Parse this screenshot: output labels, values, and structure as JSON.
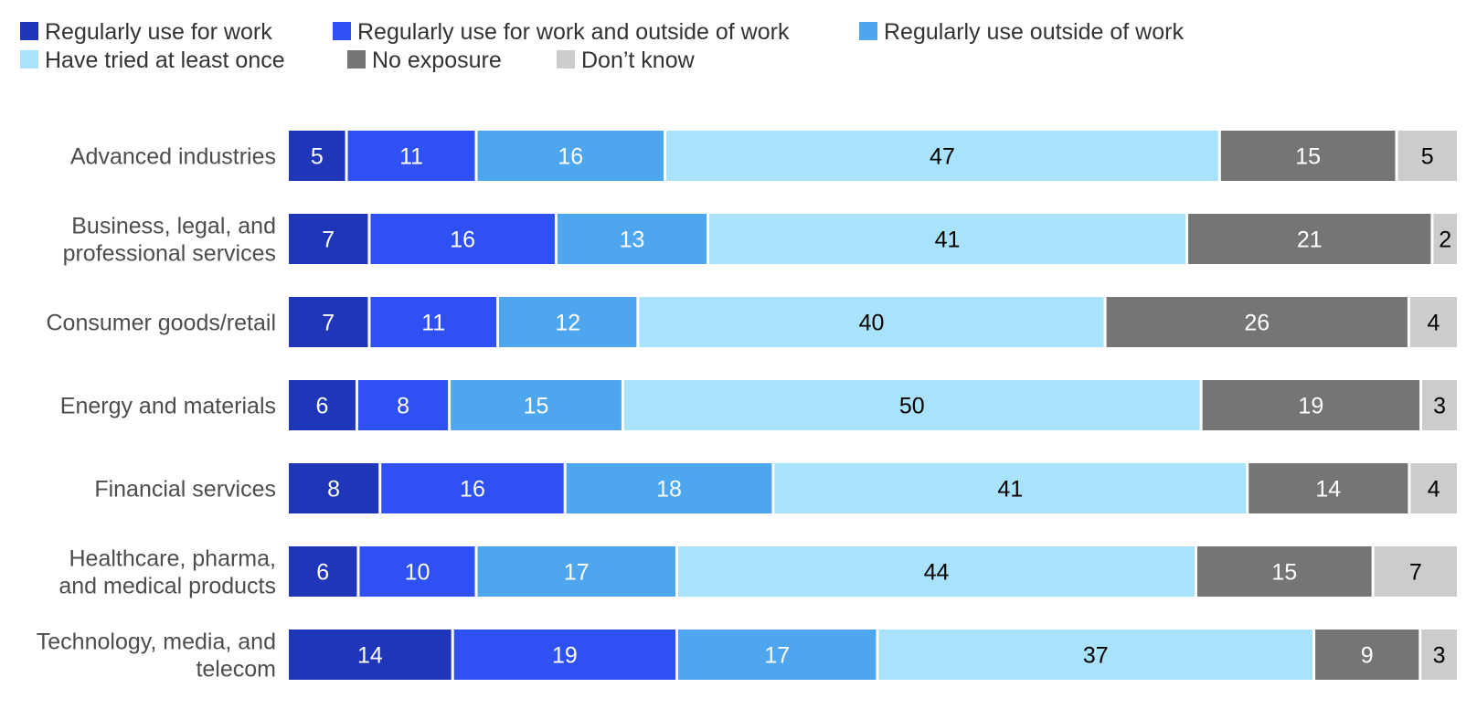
{
  "chart_data": {
    "type": "bar",
    "orientation": "horizontal",
    "stacked": true,
    "title": "",
    "xlabel": "",
    "ylabel": "",
    "grid": false,
    "legend_placement": "top-left",
    "categories": [
      [
        "Advanced industries"
      ],
      [
        "Business, legal, and",
        "professional services"
      ],
      [
        "Consumer goods/retail"
      ],
      [
        "Energy and materials"
      ],
      [
        "Financial services"
      ],
      [
        "Healthcare, pharma,",
        "and medical products"
      ],
      [
        "Technology, media, and",
        "telecom"
      ]
    ],
    "series": [
      {
        "name": "Regularly use for work",
        "color": "#1f36b8",
        "label_color": "#ffffff",
        "values": [
          5,
          7,
          7,
          6,
          8,
          6,
          14
        ]
      },
      {
        "name": "Regularly use for work and outside of work",
        "color": "#2f50f2",
        "label_color": "#ffffff",
        "values": [
          11,
          16,
          11,
          8,
          16,
          10,
          19
        ]
      },
      {
        "name": "Regularly use outside of work",
        "color": "#4ea7ee",
        "label_color": "#ffffff",
        "values": [
          16,
          13,
          12,
          15,
          18,
          17,
          17
        ]
      },
      {
        "name": "Have tried at least once",
        "color": "#a9e2fb",
        "label_color": "#000000",
        "values": [
          47,
          41,
          40,
          50,
          41,
          44,
          37
        ]
      },
      {
        "name": "No exposure",
        "color": "#757575",
        "label_color": "#ffffff",
        "values": [
          15,
          21,
          26,
          19,
          14,
          15,
          9
        ]
      },
      {
        "name": "Don’t know",
        "color": "#cccccc",
        "label_color": "#000000",
        "values": [
          5,
          2,
          4,
          3,
          4,
          7,
          3
        ]
      }
    ]
  }
}
